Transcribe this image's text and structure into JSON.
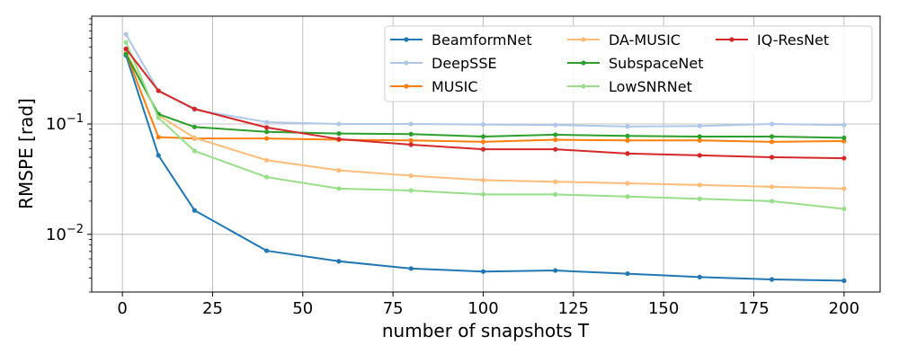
{
  "chart_data": {
    "type": "line",
    "title": "",
    "xlabel": "number of snapshots T",
    "ylabel": "RMSPE [rad]",
    "yscale": "log",
    "xlim": [
      -8.5,
      210
    ],
    "ylim": [
      0.003,
      0.95
    ],
    "grid": true,
    "legend_position": "top-right",
    "legend_columns": 3,
    "xticks": [
      0,
      25,
      50,
      75,
      100,
      125,
      150,
      175,
      200
    ],
    "xtick_labels": [
      "0",
      "25",
      "50",
      "75",
      "100",
      "125",
      "150",
      "175",
      "200"
    ],
    "yticks": [
      {
        "value": 0.01,
        "base": "10",
        "exp": "−2"
      },
      {
        "value": 0.1,
        "base": "10",
        "exp": "−1"
      }
    ],
    "x": [
      1,
      10,
      20,
      40,
      60,
      80,
      100,
      120,
      140,
      160,
      180,
      200
    ],
    "series": [
      {
        "name": "BeamformNet",
        "color": "#1f77b4",
        "values": [
          0.42,
          0.052,
          0.0165,
          0.0071,
          0.0057,
          0.0049,
          0.0046,
          0.0047,
          0.0044,
          0.0041,
          0.0039,
          0.0038
        ]
      },
      {
        "name": "DeepSSE",
        "color": "#aec7e8",
        "values": [
          0.65,
          0.2,
          0.135,
          0.104,
          0.1,
          0.1,
          0.099,
          0.098,
          0.095,
          0.096,
          0.1,
          0.098
        ]
      },
      {
        "name": "MUSIC",
        "color": "#ff7f0e",
        "values": [
          0.44,
          0.076,
          0.074,
          0.074,
          0.072,
          0.071,
          0.069,
          0.072,
          0.071,
          0.071,
          0.069,
          0.07
        ]
      },
      {
        "name": "DA-MUSIC",
        "color": "#ffbb78",
        "values": [
          0.45,
          0.12,
          0.075,
          0.047,
          0.038,
          0.034,
          0.031,
          0.03,
          0.029,
          0.028,
          0.027,
          0.026
        ]
      },
      {
        "name": "SubspaceNet",
        "color": "#2ca02c",
        "values": [
          0.43,
          0.123,
          0.094,
          0.085,
          0.082,
          0.081,
          0.077,
          0.08,
          0.078,
          0.077,
          0.077,
          0.075
        ]
      },
      {
        "name": "LowSNRNet",
        "color": "#98df8a",
        "values": [
          0.55,
          0.114,
          0.057,
          0.033,
          0.026,
          0.025,
          0.023,
          0.023,
          0.022,
          0.021,
          0.02,
          0.017
        ]
      },
      {
        "name": "IQ-ResNet",
        "color": "#d62728",
        "values": [
          0.48,
          0.2,
          0.137,
          0.093,
          0.073,
          0.065,
          0.059,
          0.059,
          0.054,
          0.052,
          0.05,
          0.049
        ]
      }
    ]
  }
}
